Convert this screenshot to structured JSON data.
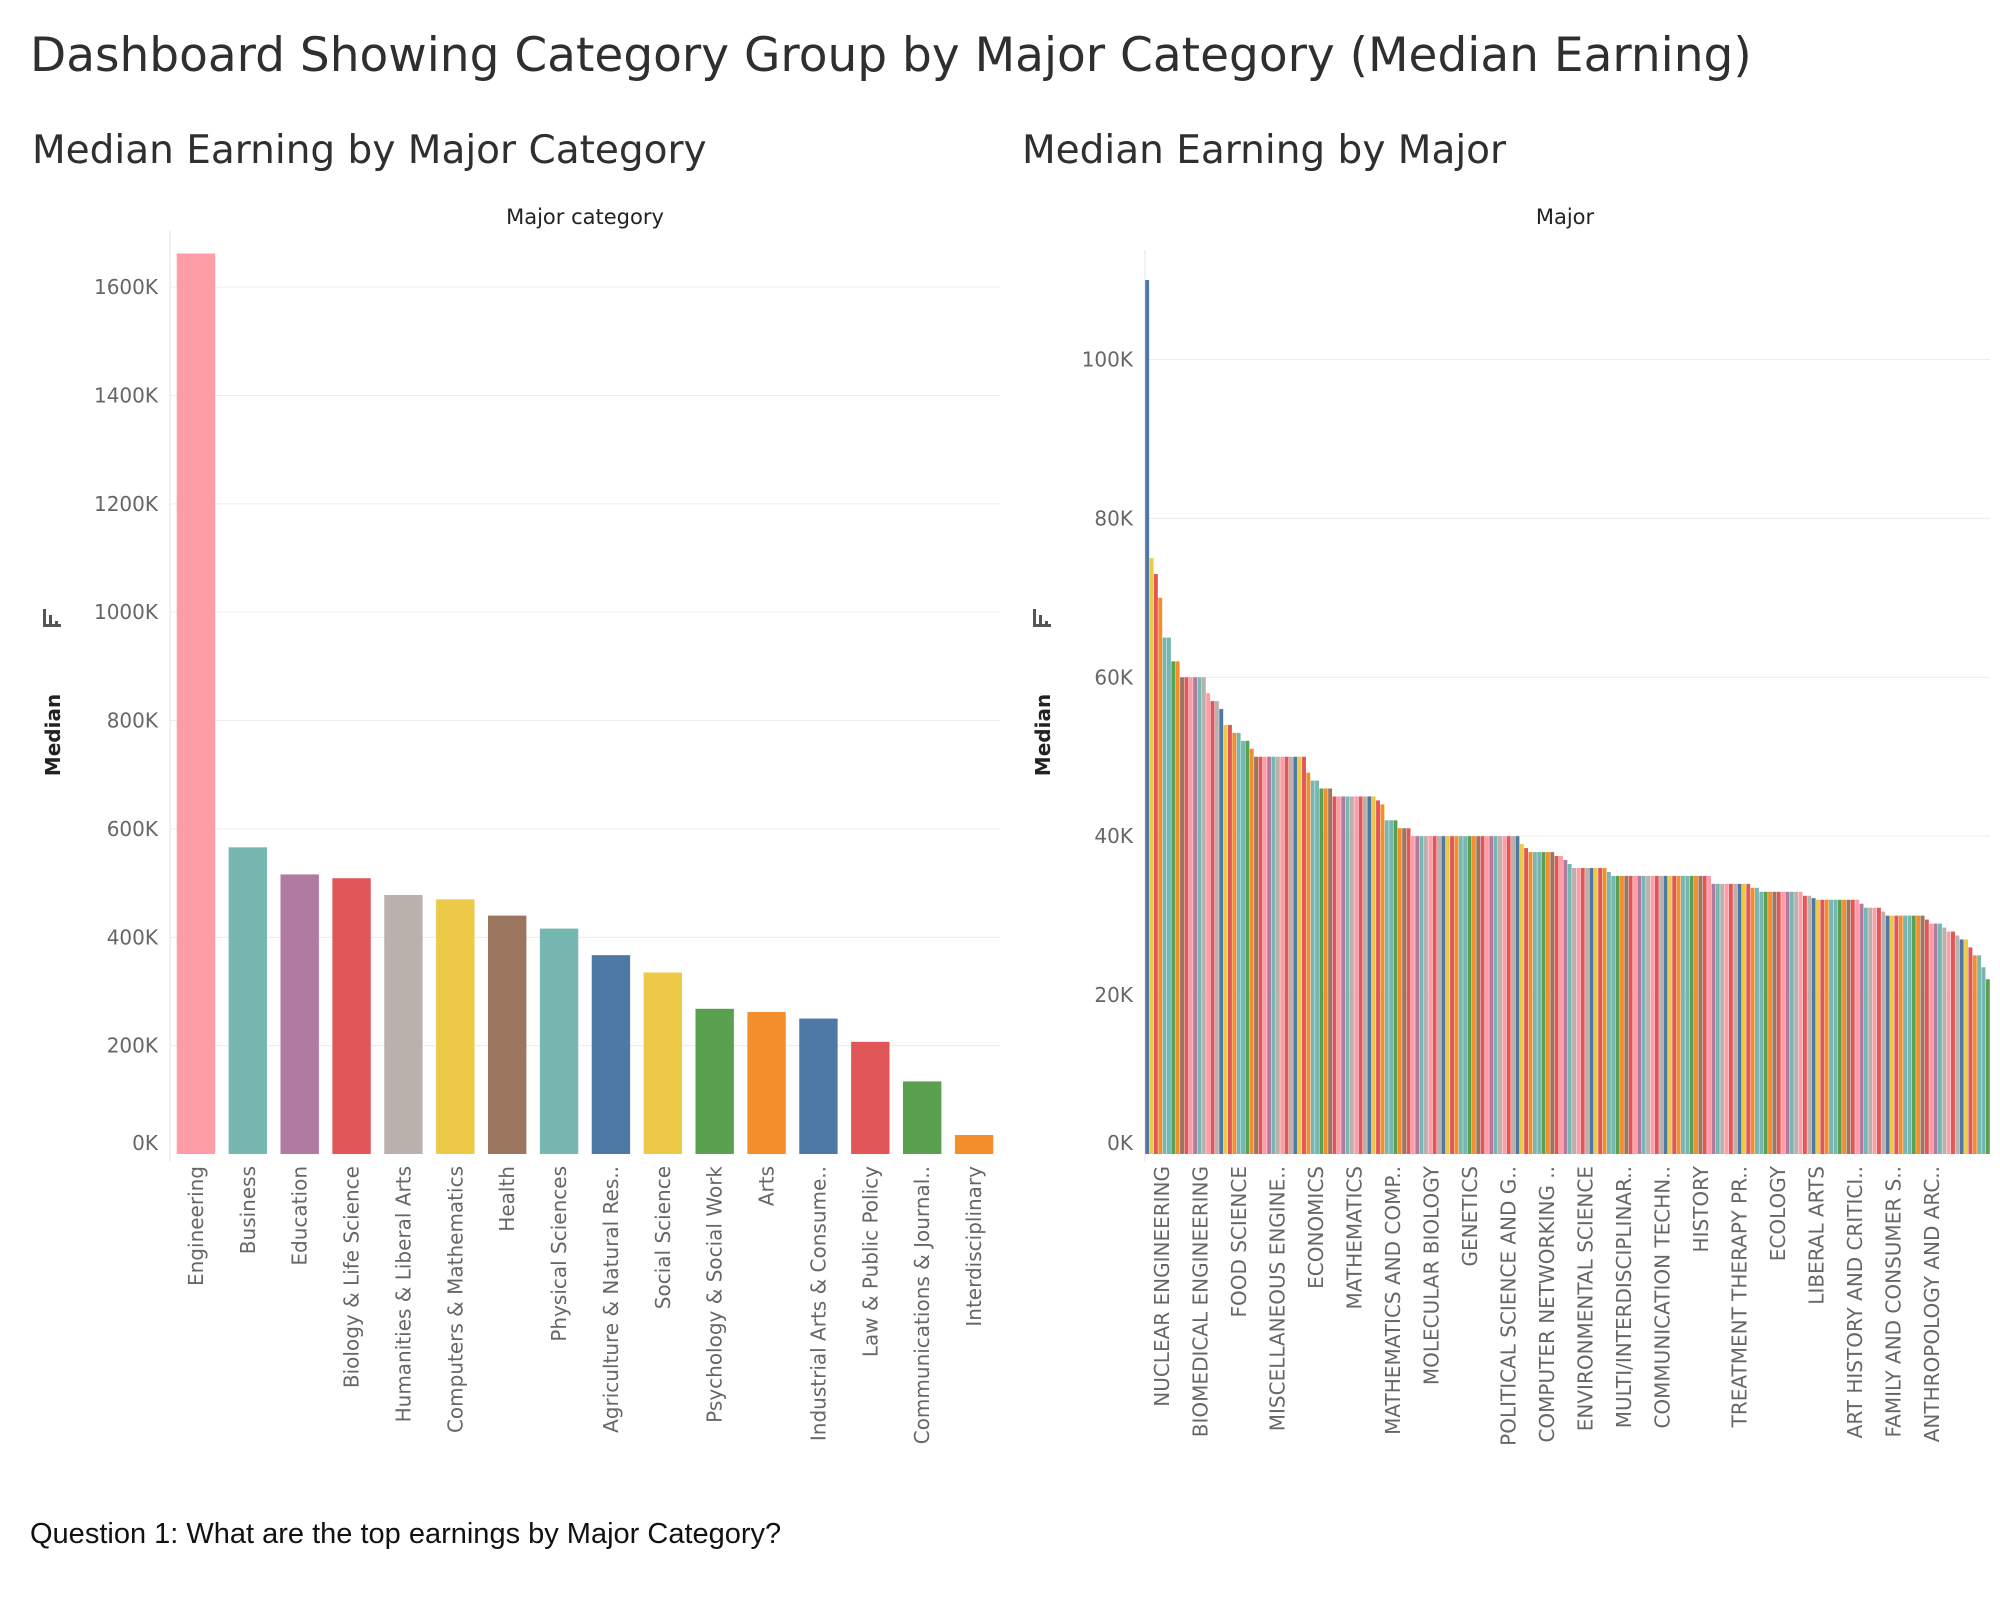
{
  "dashboard_title": "Dashboard Showing Category Group by Major Category (Median Earning)",
  "question": "Question 1: What are the top earnings by Major Category?",
  "chart_data": [
    {
      "type": "bar",
      "title": "Median Earning by Major Category",
      "header": "Major category",
      "ylabel": "Median",
      "ylim": [
        0,
        1650000
      ],
      "yticks": [
        "0K",
        "200K",
        "400K",
        "600K",
        "800K",
        "1000K",
        "1200K",
        "1400K",
        "1600K"
      ],
      "categories": [
        "Engineering",
        "Business",
        "Education",
        "Biology & Life Science",
        "Humanities & Liberal Arts",
        "Computers & Mathematics",
        "Health",
        "Physical Sciences",
        "Agriculture & Natural Res..",
        "Social Science",
        "Psychology & Social Work",
        "Arts",
        "Industrial Arts & Consume..",
        "Law & Public Policy",
        "Communications & Journal..",
        "Interdisciplinary"
      ],
      "values": [
        1662000,
        566000,
        516000,
        509000,
        478000,
        470000,
        440000,
        416000,
        367000,
        335000,
        268000,
        262000,
        250000,
        207000,
        134000,
        35000
      ],
      "colors": [
        "#ff9da7",
        "#76b7b2",
        "#b07aa1",
        "#e15759",
        "#bab0ac",
        "#edc948",
        "#9c755f",
        "#76b7b2",
        "#4e79a7",
        "#edc948",
        "#59a14f",
        "#f28e2b",
        "#4e79a7",
        "#e15759",
        "#59a14f",
        "#f28e2b"
      ]
    },
    {
      "type": "bar",
      "title": "Median Earning by Major",
      "header": "Major",
      "ylabel": "Median",
      "ylim": [
        0,
        110000
      ],
      "yticks": [
        "0K",
        "20K",
        "40K",
        "60K",
        "80K",
        "100K"
      ],
      "tick_labels": [
        "NUCLEAR ENGINEERING",
        "BIOMEDICAL ENGINEERING",
        "FOOD SCIENCE",
        "MISCELLANEOUS ENGINE..",
        "ECONOMICS",
        "MATHEMATICS",
        "MATHEMATICS AND COMP..",
        "MOLECULAR BIOLOGY",
        "GENETICS",
        "POLITICAL SCIENCE AND G..",
        "COMPUTER NETWORKING ..",
        "ENVIRONMENTAL SCIENCE",
        "MULTI/INTERDISCIPLINAR..",
        "COMMUNICATION TECHN..",
        "HISTORY",
        "TREATMENT THERAPY PR..",
        "ECOLOGY",
        "LIBERAL ARTS",
        "ART HISTORY AND CRITICI..",
        "FAMILY AND CONSUMER S..",
        "ANTHROPOLOGY AND ARC.."
      ],
      "values": [
        110000,
        75000,
        73000,
        70000,
        65000,
        65000,
        62000,
        62000,
        60000,
        60000,
        60000,
        60000,
        60000,
        60000,
        58000,
        57000,
        57000,
        56000,
        54000,
        54000,
        53000,
        53000,
        52000,
        52000,
        51000,
        50000,
        50000,
        50000,
        50000,
        50000,
        50000,
        50000,
        50000,
        50000,
        50000,
        50000,
        50000,
        48000,
        47000,
        47000,
        46000,
        46000,
        46000,
        45000,
        45000,
        45000,
        45000,
        45000,
        45000,
        45000,
        45000,
        45000,
        45000,
        44500,
        44000,
        42000,
        42000,
        42000,
        41000,
        41000,
        41000,
        40000,
        40000,
        40000,
        40000,
        40000,
        40000,
        40000,
        40000,
        40000,
        40000,
        40000,
        40000,
        40000,
        40000,
        40000,
        40000,
        40000,
        40000,
        40000,
        40000,
        40000,
        40000,
        40000,
        40000,
        40000,
        39000,
        38500,
        38000,
        38000,
        38000,
        38000,
        38000,
        38000,
        37500,
        37500,
        37000,
        36500,
        36000,
        36000,
        36000,
        36000,
        36000,
        36000,
        36000,
        36000,
        35500,
        35000,
        35000,
        35000,
        35000,
        35000,
        35000,
        35000,
        35000,
        35000,
        35000,
        35000,
        35000,
        35000,
        35000,
        35000,
        35000,
        35000,
        35000,
        35000,
        35000,
        35000,
        35000,
        35000,
        34000,
        34000,
        34000,
        34000,
        34000,
        34000,
        34000,
        34000,
        34000,
        33500,
        33500,
        33000,
        33000,
        33000,
        33000,
        33000,
        33000,
        33000,
        33000,
        33000,
        33000,
        32500,
        32500,
        32200,
        32000,
        32000,
        32000,
        32000,
        32000,
        32000,
        32000,
        32000,
        32000,
        32000,
        31500,
        31000,
        31000,
        31000,
        31000,
        30500,
        30000,
        30000,
        30000,
        30000,
        30000,
        30000,
        30000,
        30000,
        30000,
        29500,
        29000,
        29000,
        29000,
        28500,
        28000,
        28000,
        27500,
        27000,
        27000,
        26000,
        25000,
        25000,
        23500,
        22000
      ],
      "colors": [
        "#4e79a7",
        "#edc948",
        "#e15759",
        "#f28e2b",
        "#76b7b2",
        "#76b7b2",
        "#59a14f",
        "#f28e2b",
        "#9c755f",
        "#e15759",
        "#ff9da7",
        "#b07aa1",
        "#76b7b2",
        "#bab0ac",
        "#ff9da7",
        "#e15759",
        "#bab0ac"
      ]
    }
  ]
}
